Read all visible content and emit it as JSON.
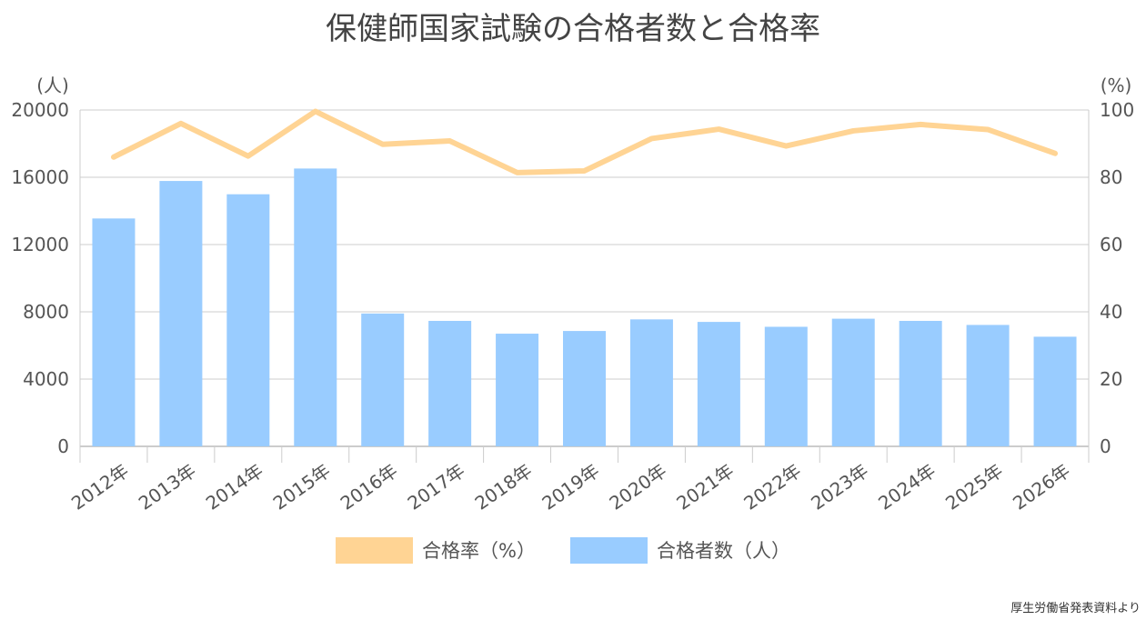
{
  "title": "保健師国家試験の合格者数と合格率",
  "source": "厚生労働省発表資料より",
  "chart_data": {
    "type": "bar",
    "categories": [
      "2012年",
      "2013年",
      "2014年",
      "2015年",
      "2016年",
      "2017年",
      "2018年",
      "2019年",
      "2020年",
      "2021年",
      "2022年",
      "2023年",
      "2024年",
      "2025年",
      "2026年"
    ],
    "y_left": {
      "unit_label": "(人)",
      "ylim": [
        0,
        20000
      ],
      "ticks": [
        "0",
        "4000",
        "8000",
        "12000",
        "16000",
        "20000"
      ],
      "tick_values": [
        0,
        4000,
        8000,
        12000,
        16000,
        20000
      ]
    },
    "y_right": {
      "unit_label": "(%)",
      "ylim": [
        0,
        100
      ],
      "ticks": [
        "0",
        "20",
        "40",
        "60",
        "80",
        "100"
      ],
      "tick_values": [
        0,
        20,
        40,
        60,
        80,
        100
      ]
    },
    "series": [
      {
        "name": "合格者数（人）",
        "type": "bar",
        "axis": "left",
        "color": "#99ccff",
        "values": [
          13550,
          15780,
          14990,
          16520,
          7900,
          7460,
          6700,
          6860,
          7550,
          7400,
          7110,
          7590,
          7460,
          7220,
          6520
        ]
      },
      {
        "name": "合格率（%）",
        "type": "line",
        "axis": "right",
        "color": "#ffd494",
        "values": [
          86.0,
          96.0,
          86.3,
          99.6,
          89.8,
          90.8,
          81.4,
          81.9,
          91.5,
          94.3,
          89.3,
          93.8,
          95.7,
          94.2,
          87.1
        ]
      }
    ],
    "legend": {
      "placement": "bottom",
      "items": [
        "合格率（%）",
        "合格者数（人）"
      ]
    },
    "grid": true
  }
}
